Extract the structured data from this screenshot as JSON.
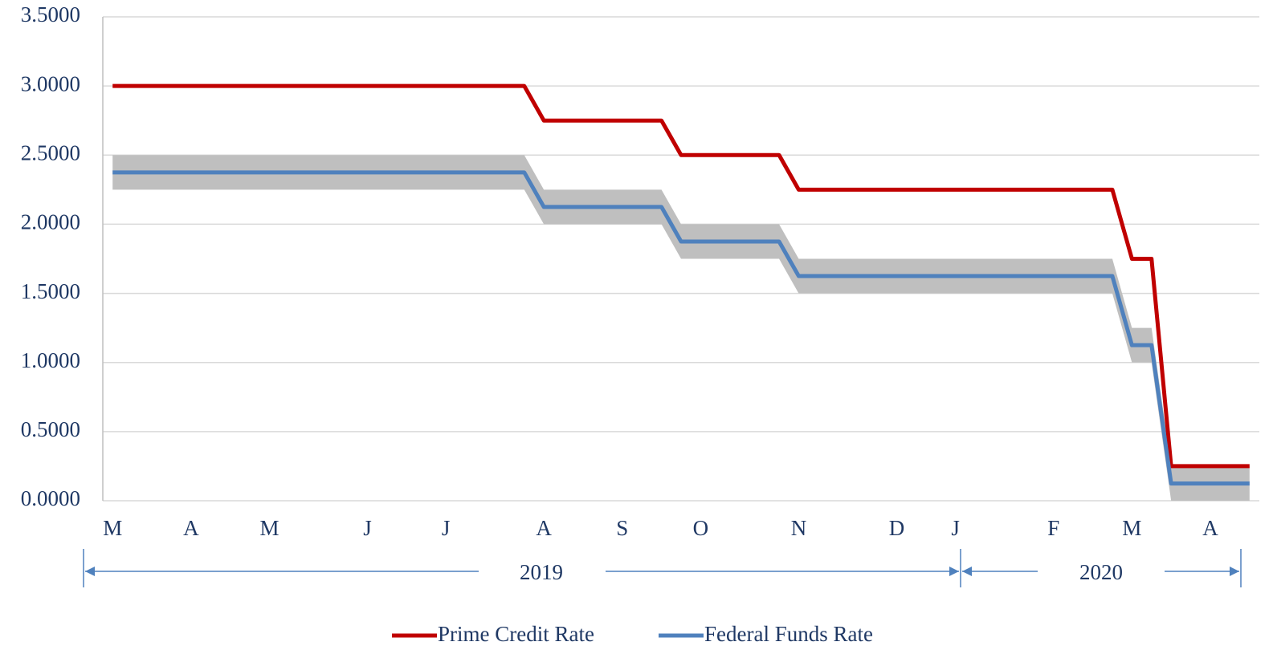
{
  "chart_data": {
    "type": "line",
    "categories": [
      "M",
      null,
      null,
      null,
      "A",
      null,
      null,
      null,
      "M",
      null,
      null,
      null,
      null,
      "J",
      null,
      null,
      null,
      "J",
      null,
      null,
      null,
      null,
      "A",
      null,
      null,
      null,
      "S",
      null,
      null,
      null,
      "O",
      null,
      null,
      null,
      null,
      "N",
      null,
      null,
      null,
      null,
      "D",
      null,
      null,
      "J",
      null,
      null,
      null,
      null,
      "F",
      null,
      null,
      null,
      "M",
      null,
      null,
      null,
      "A",
      null,
      null
    ],
    "series": [
      {
        "name": "Prime Credit Rate",
        "color": "#c00000",
        "values": [
          3,
          3,
          3,
          3,
          3,
          3,
          3,
          3,
          3,
          3,
          3,
          3,
          3,
          3,
          3,
          3,
          3,
          3,
          3,
          3,
          3,
          3,
          2.75,
          2.75,
          2.75,
          2.75,
          2.75,
          2.75,
          2.75,
          2.5,
          2.5,
          2.5,
          2.5,
          2.5,
          2.5,
          2.25,
          2.25,
          2.25,
          2.25,
          2.25,
          2.25,
          2.25,
          2.25,
          2.25,
          2.25,
          2.25,
          2.25,
          2.25,
          2.25,
          2.25,
          2.25,
          2.25,
          1.75,
          1.75,
          0.25,
          0.25,
          0.25,
          0.25,
          0.25
        ]
      },
      {
        "name": "Federal Funds Rate",
        "color": "#4f81bd",
        "values": [
          2.375,
          2.375,
          2.375,
          2.375,
          2.375,
          2.375,
          2.375,
          2.375,
          2.375,
          2.375,
          2.375,
          2.375,
          2.375,
          2.375,
          2.375,
          2.375,
          2.375,
          2.375,
          2.375,
          2.375,
          2.375,
          2.375,
          2.125,
          2.125,
          2.125,
          2.125,
          2.125,
          2.125,
          2.125,
          1.875,
          1.875,
          1.875,
          1.875,
          1.875,
          1.875,
          1.625,
          1.625,
          1.625,
          1.625,
          1.625,
          1.625,
          1.625,
          1.625,
          1.625,
          1.625,
          1.625,
          1.625,
          1.625,
          1.625,
          1.625,
          1.625,
          1.625,
          1.125,
          1.125,
          0.125,
          0.125,
          0.125,
          0.125,
          0.125
        ]
      }
    ],
    "band": {
      "color": "#bfbfbf",
      "low": [
        2.25,
        2.25,
        2.25,
        2.25,
        2.25,
        2.25,
        2.25,
        2.25,
        2.25,
        2.25,
        2.25,
        2.25,
        2.25,
        2.25,
        2.25,
        2.25,
        2.25,
        2.25,
        2.25,
        2.25,
        2.25,
        2.25,
        2,
        2,
        2,
        2,
        2,
        2,
        2,
        1.75,
        1.75,
        1.75,
        1.75,
        1.75,
        1.75,
        1.5,
        1.5,
        1.5,
        1.5,
        1.5,
        1.5,
        1.5,
        1.5,
        1.5,
        1.5,
        1.5,
        1.5,
        1.5,
        1.5,
        1.5,
        1.5,
        1.5,
        1,
        1,
        0,
        0,
        0,
        0,
        0
      ],
      "high": [
        2.5,
        2.5,
        2.5,
        2.5,
        2.5,
        2.5,
        2.5,
        2.5,
        2.5,
        2.5,
        2.5,
        2.5,
        2.5,
        2.5,
        2.5,
        2.5,
        2.5,
        2.5,
        2.5,
        2.5,
        2.5,
        2.5,
        2.25,
        2.25,
        2.25,
        2.25,
        2.25,
        2.25,
        2.25,
        2,
        2,
        2,
        2,
        2,
        2,
        1.75,
        1.75,
        1.75,
        1.75,
        1.75,
        1.75,
        1.75,
        1.75,
        1.75,
        1.75,
        1.75,
        1.75,
        1.75,
        1.75,
        1.75,
        1.75,
        1.75,
        1.25,
        1.25,
        0.25,
        0.25,
        0.25,
        0.25,
        0.25
      ]
    },
    "year_labels": [
      "2019",
      "2020"
    ],
    "ylim": [
      0,
      3.5
    ],
    "yticks": [
      {
        "value": 0,
        "label": "0.0000"
      },
      {
        "value": 0.5,
        "label": "0.5000"
      },
      {
        "value": 1,
        "label": "1.0000"
      },
      {
        "value": 1.5,
        "label": "1.5000"
      },
      {
        "value": 2,
        "label": "2.0000"
      },
      {
        "value": 2.5,
        "label": "2.5000"
      },
      {
        "value": 3,
        "label": "3.0000"
      },
      {
        "value": 3.5,
        "label": "3.5000"
      }
    ],
    "grid": true,
    "legend": "bottom"
  }
}
